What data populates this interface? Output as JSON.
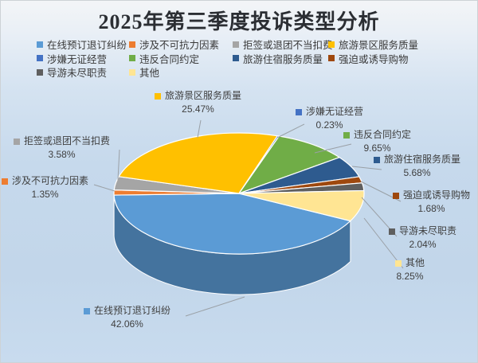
{
  "title": "2025年第三季度投诉类型分析",
  "chart_data": {
    "type": "pie",
    "projection": "3d",
    "title": "2025年第三季度投诉类型分析",
    "legend_position": "top-left",
    "unit": "%",
    "series": [
      {
        "name": "在线预订退订纠纷",
        "value": 42.06,
        "pct_label": "42.06%",
        "color": "#5B9BD5"
      },
      {
        "name": "涉及不可抗力因素",
        "value": 1.35,
        "pct_label": "1.35%",
        "color": "#ED7D31"
      },
      {
        "name": "拒签或退团不当扣费",
        "value": 3.58,
        "pct_label": "3.58%",
        "color": "#A5A5A5"
      },
      {
        "name": "旅游景区服务质量",
        "value": 25.47,
        "pct_label": "25.47%",
        "color": "#FFC000"
      },
      {
        "name": "涉嫌无证经营",
        "value": 0.23,
        "pct_label": "0.23%",
        "color": "#4472C4"
      },
      {
        "name": "违反合同约定",
        "value": 9.65,
        "pct_label": "9.65%",
        "color": "#70AD47"
      },
      {
        "name": "旅游住宿服务质量",
        "value": 5.68,
        "pct_label": "5.68%",
        "color": "#2E5B8F"
      },
      {
        "name": "强迫或诱导购物",
        "value": 1.68,
        "pct_label": "1.68%",
        "color": "#9E480E"
      },
      {
        "name": "导游未尽职责",
        "value": 2.04,
        "pct_label": "2.04%",
        "color": "#5F5F5F"
      },
      {
        "name": "其他",
        "value": 8.25,
        "pct_label": "8.25%",
        "color": "#FFE593"
      }
    ]
  }
}
